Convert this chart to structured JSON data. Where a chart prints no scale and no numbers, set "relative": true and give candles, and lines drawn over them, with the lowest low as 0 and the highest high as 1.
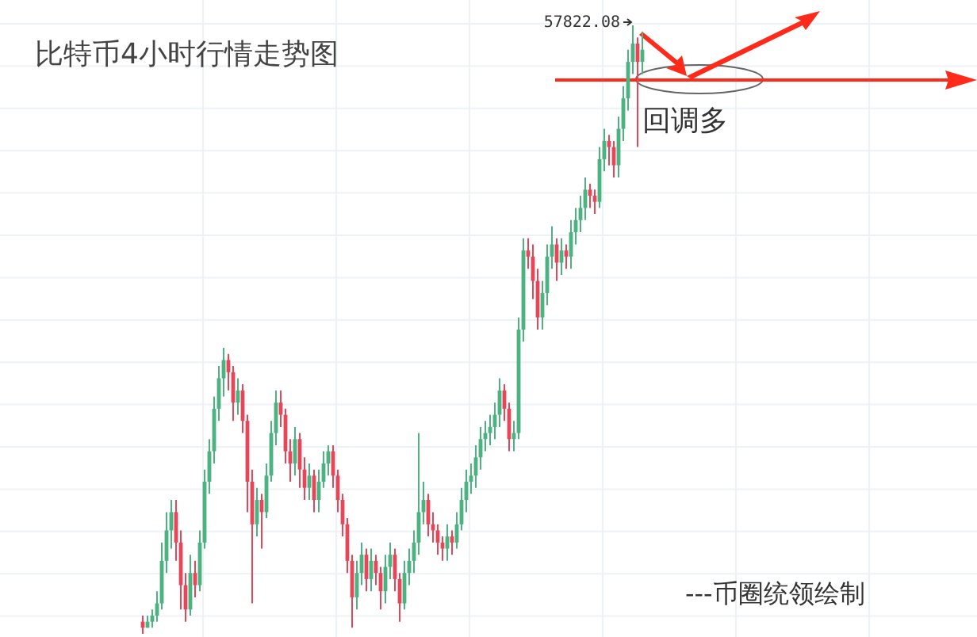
{
  "chart_data": {
    "type": "candlestick",
    "title": "比特币4小时行情走势图",
    "relative": true,
    "grid": true,
    "ref_lines": [
      {
        "axis": "y",
        "value": 0.91,
        "color": "#ff2a1a"
      }
    ],
    "annotations": [
      "57822.08",
      "回调多",
      "---币圈统领绘制"
    ],
    "categories": [
      null,
      null,
      null,
      null,
      null,
      null,
      null,
      null,
      null,
      null,
      null,
      null,
      null,
      null,
      null,
      null,
      null,
      null,
      null,
      null,
      null,
      null,
      null,
      null,
      null,
      null,
      null,
      null,
      null,
      null,
      null,
      null,
      null,
      null,
      null,
      null,
      null,
      null,
      null,
      null,
      null,
      null,
      null,
      null,
      null,
      null,
      null,
      null,
      null,
      null,
      null,
      null,
      null,
      null,
      null,
      null,
      null,
      null,
      null,
      null,
      null,
      null,
      null,
      null,
      null,
      null,
      null,
      null,
      null,
      null,
      null,
      null,
      null,
      null,
      null,
      null,
      null,
      null,
      null,
      null,
      null,
      null,
      null,
      null,
      null,
      null,
      null,
      null,
      null,
      null,
      null,
      null,
      null,
      null,
      null,
      null,
      null,
      null,
      null,
      null,
      null,
      null,
      null,
      null,
      null,
      null
    ],
    "ohlc": [
      [
        0.02,
        0.03,
        0,
        0.01
      ],
      [
        0.01,
        0.03,
        0.01,
        0.02
      ],
      [
        0.02,
        0.04,
        0.01,
        0.03
      ],
      [
        0.03,
        0.07,
        0.02,
        0.05
      ],
      [
        0.05,
        0.15,
        0.04,
        0.12
      ],
      [
        0.12,
        0.2,
        0.1,
        0.17
      ],
      [
        0.17,
        0.22,
        0.14,
        0.2
      ],
      [
        0.2,
        0.22,
        0.12,
        0.15
      ],
      [
        0.15,
        0.17,
        0.04,
        0.08
      ],
      [
        0.08,
        0.1,
        0.02,
        0.04
      ],
      [
        0.04,
        0.13,
        0.03,
        0.1
      ],
      [
        0.1,
        0.12,
        0.06,
        0.08
      ],
      [
        0.08,
        0.17,
        0.07,
        0.15
      ],
      [
        0.15,
        0.27,
        0.14,
        0.25
      ],
      [
        0.25,
        0.32,
        0.23,
        0.3
      ],
      [
        0.3,
        0.39,
        0.28,
        0.37
      ],
      [
        0.37,
        0.44,
        0.35,
        0.42
      ],
      [
        0.42,
        0.47,
        0.39,
        0.45
      ],
      [
        0.45,
        0.46,
        0.4,
        0.43
      ],
      [
        0.43,
        0.44,
        0.35,
        0.38
      ],
      [
        0.38,
        0.42,
        0.36,
        0.4
      ],
      [
        0.4,
        0.41,
        0.33,
        0.35
      ],
      [
        0.35,
        0.36,
        0.2,
        0.25
      ],
      [
        0.25,
        0.27,
        0.05,
        0.18
      ],
      [
        0.18,
        0.24,
        0.16,
        0.22
      ],
      [
        0.22,
        0.23,
        0.14,
        0.2
      ],
      [
        0.2,
        0.28,
        0.19,
        0.26
      ],
      [
        0.26,
        0.35,
        0.25,
        0.33
      ],
      [
        0.33,
        0.4,
        0.31,
        0.38
      ],
      [
        0.38,
        0.4,
        0.34,
        0.36
      ],
      [
        0.36,
        0.37,
        0.28,
        0.3
      ],
      [
        0.3,
        0.32,
        0.25,
        0.28
      ],
      [
        0.28,
        0.34,
        0.26,
        0.32
      ],
      [
        0.32,
        0.33,
        0.24,
        0.27
      ],
      [
        0.27,
        0.29,
        0.22,
        0.24
      ],
      [
        0.24,
        0.28,
        0.22,
        0.26
      ],
      [
        0.26,
        0.27,
        0.2,
        0.22
      ],
      [
        0.22,
        0.27,
        0.2,
        0.25
      ],
      [
        0.25,
        0.3,
        0.24,
        0.28
      ],
      [
        0.28,
        0.31,
        0.26,
        0.3
      ],
      [
        0.3,
        0.31,
        0.24,
        0.26
      ],
      [
        0.26,
        0.27,
        0.2,
        0.22
      ],
      [
        0.22,
        0.23,
        0.16,
        0.18
      ],
      [
        0.18,
        0.19,
        0.1,
        0.12
      ],
      [
        0.12,
        0.13,
        0.01,
        0.06
      ],
      [
        0.06,
        0.12,
        0.04,
        0.1
      ],
      [
        0.1,
        0.15,
        0.08,
        0.13
      ],
      [
        0.13,
        0.14,
        0.07,
        0.09
      ],
      [
        0.09,
        0.14,
        0.07,
        0.12
      ],
      [
        0.12,
        0.13,
        0.08,
        0.1
      ],
      [
        0.1,
        0.11,
        0.04,
        0.07
      ],
      [
        0.07,
        0.13,
        0.05,
        0.11
      ],
      [
        0.11,
        0.15,
        0.09,
        0.13
      ],
      [
        0.13,
        0.14,
        0.07,
        0.09
      ],
      [
        0.09,
        0.1,
        0.02,
        0.05
      ],
      [
        0.05,
        0.12,
        0.04,
        0.1
      ],
      [
        0.1,
        0.14,
        0.08,
        0.12
      ],
      [
        0.12,
        0.17,
        0.1,
        0.15
      ],
      [
        0.15,
        0.33,
        0.13,
        0.2
      ],
      [
        0.2,
        0.25,
        0.18,
        0.22
      ],
      [
        0.22,
        0.23,
        0.16,
        0.18
      ],
      [
        0.18,
        0.2,
        0.15,
        0.17
      ],
      [
        0.17,
        0.18,
        0.13,
        0.15
      ],
      [
        0.15,
        0.16,
        0.12,
        0.14
      ],
      [
        0.14,
        0.18,
        0.12,
        0.16
      ],
      [
        0.16,
        0.17,
        0.13,
        0.15
      ],
      [
        0.15,
        0.2,
        0.14,
        0.18
      ],
      [
        0.18,
        0.24,
        0.17,
        0.22
      ],
      [
        0.22,
        0.27,
        0.2,
        0.25
      ],
      [
        0.25,
        0.28,
        0.23,
        0.26
      ],
      [
        0.26,
        0.31,
        0.24,
        0.29
      ],
      [
        0.29,
        0.34,
        0.27,
        0.32
      ],
      [
        0.32,
        0.35,
        0.3,
        0.33
      ],
      [
        0.33,
        0.36,
        0.31,
        0.34
      ],
      [
        0.34,
        0.38,
        0.32,
        0.36
      ],
      [
        0.36,
        0.42,
        0.34,
        0.4
      ],
      [
        0.4,
        0.41,
        0.35,
        0.37
      ],
      [
        0.37,
        0.38,
        0.3,
        0.32
      ],
      [
        0.32,
        0.35,
        0.3,
        0.33
      ],
      [
        0.33,
        0.52,
        0.32,
        0.5
      ],
      [
        0.5,
        0.65,
        0.48,
        0.63
      ],
      [
        0.63,
        0.65,
        0.6,
        0.62
      ],
      [
        0.62,
        0.64,
        0.55,
        0.58
      ],
      [
        0.58,
        0.6,
        0.5,
        0.52
      ],
      [
        0.52,
        0.58,
        0.5,
        0.56
      ],
      [
        0.56,
        0.64,
        0.54,
        0.62
      ],
      [
        0.62,
        0.67,
        0.6,
        0.64
      ],
      [
        0.64,
        0.65,
        0.58,
        0.61
      ],
      [
        0.61,
        0.65,
        0.59,
        0.63
      ],
      [
        0.63,
        0.64,
        0.6,
        0.62
      ],
      [
        0.62,
        0.68,
        0.6,
        0.66
      ],
      [
        0.66,
        0.7,
        0.64,
        0.68
      ],
      [
        0.68,
        0.72,
        0.66,
        0.7
      ],
      [
        0.7,
        0.75,
        0.68,
        0.73
      ],
      [
        0.73,
        0.74,
        0.7,
        0.72
      ],
      [
        0.72,
        0.73,
        0.69,
        0.71
      ],
      [
        0.71,
        0.8,
        0.7,
        0.78
      ],
      [
        0.78,
        0.83,
        0.76,
        0.81
      ],
      [
        0.81,
        0.82,
        0.77,
        0.8
      ],
      [
        0.8,
        0.81,
        0.75,
        0.77
      ],
      [
        0.77,
        0.85,
        0.75,
        0.83
      ],
      [
        0.83,
        0.9,
        0.81,
        0.88
      ],
      [
        0.88,
        0.96,
        0.86,
        0.94
      ],
      [
        0.94,
        1,
        0.92,
        0.97
      ],
      [
        0.97,
        0.98,
        0.8,
        0.94
      ],
      [
        0.94,
        0.99,
        0.92,
        0.96
      ]
    ]
  }
}
